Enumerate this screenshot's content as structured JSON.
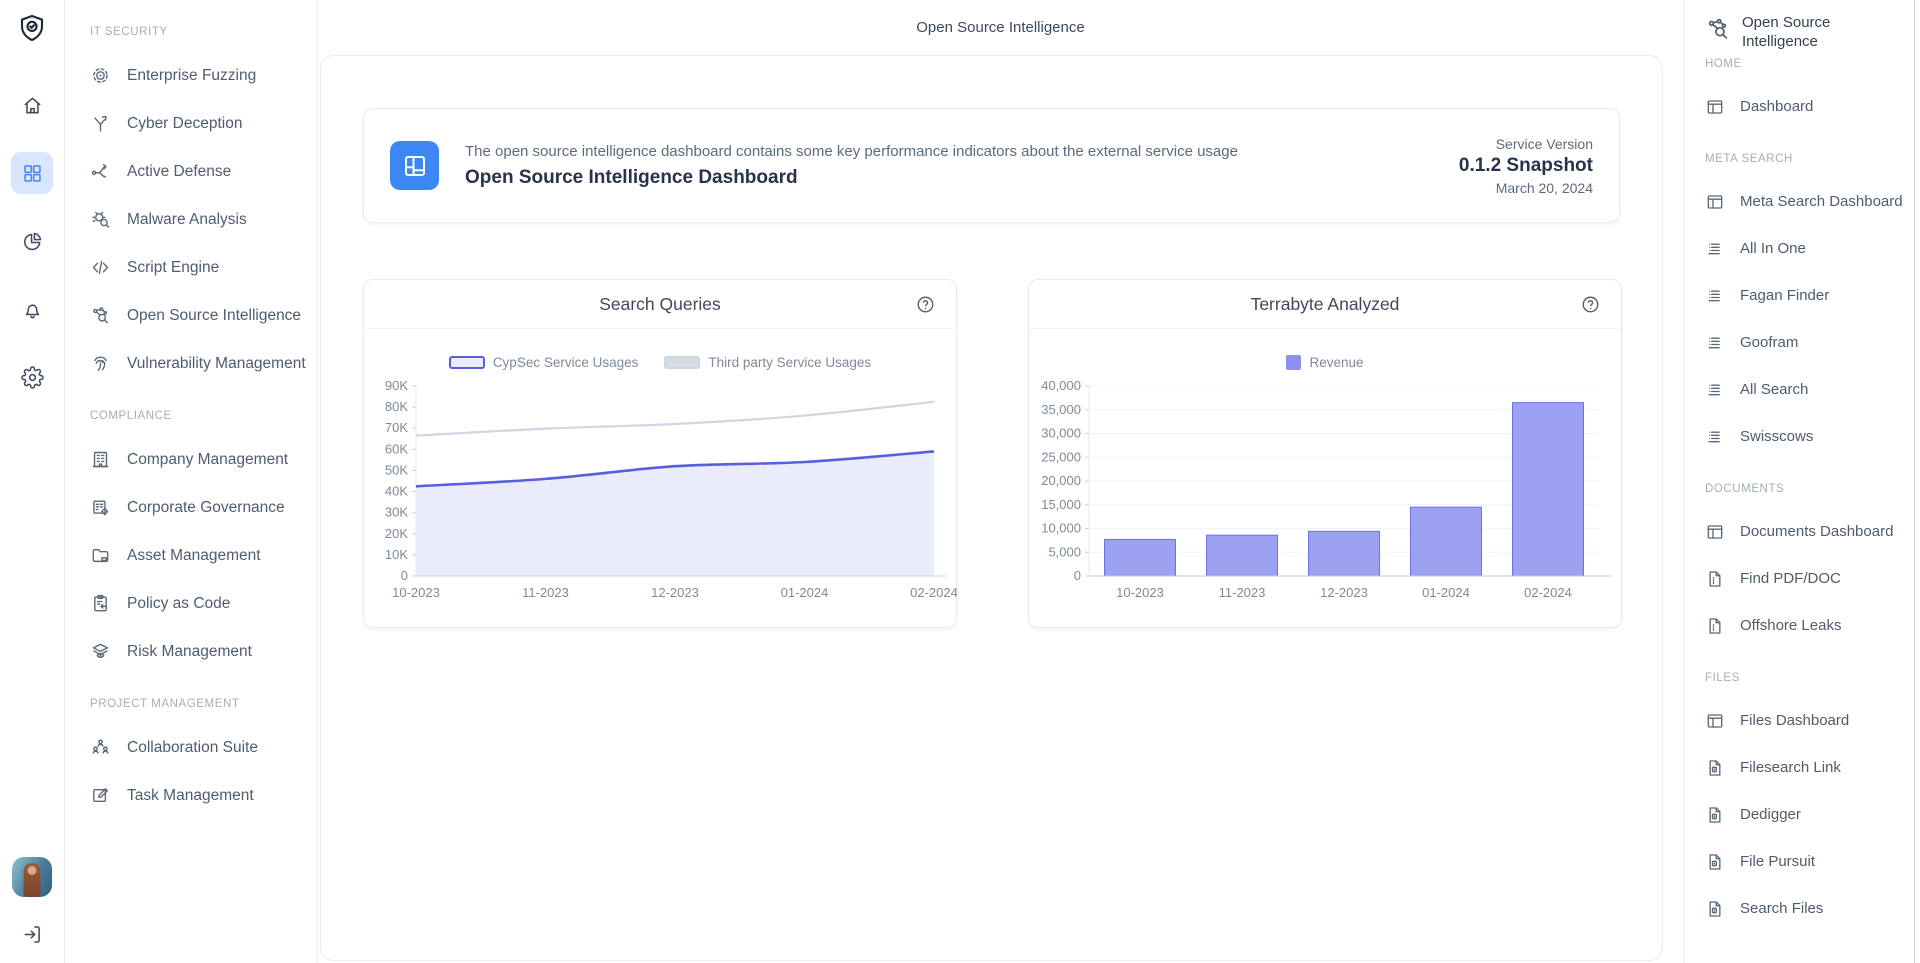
{
  "header": {
    "title": "Open Source Intelligence"
  },
  "rail": {
    "logo": "shield-check",
    "items": [
      {
        "name": "home",
        "icon": "home",
        "active": false
      },
      {
        "name": "apps-grid",
        "icon": "grid",
        "active": true
      },
      {
        "name": "analytics-pie",
        "icon": "pie",
        "active": false
      },
      {
        "name": "notifications-bell",
        "icon": "bell",
        "active": false
      },
      {
        "name": "settings-gear",
        "icon": "gear",
        "active": false
      }
    ],
    "active_color": "#4286f5",
    "active_bg": "#d8e7fd"
  },
  "sidebar": {
    "sections": [
      {
        "label": "IT SECURITY",
        "items": [
          {
            "label": "Enterprise Fuzzing",
            "icon": "target"
          },
          {
            "label": "Cyber Deception",
            "icon": "branch"
          },
          {
            "label": "Active Defense",
            "icon": "flow"
          },
          {
            "label": "Malware Analysis",
            "icon": "bug-search"
          },
          {
            "label": "Script Engine",
            "icon": "code"
          },
          {
            "label": "Open Source Intelligence",
            "icon": "network-search"
          },
          {
            "label": "Vulnerability Management",
            "icon": "fingerprint"
          }
        ]
      },
      {
        "label": "COMPLIANCE",
        "items": [
          {
            "label": "Company Management",
            "icon": "building"
          },
          {
            "label": "Corporate Governance",
            "icon": "doc-gear"
          },
          {
            "label": "Asset Management",
            "icon": "folder"
          },
          {
            "label": "Policy as Code",
            "icon": "clipboard"
          },
          {
            "label": "Risk Management",
            "icon": "layers-eye"
          }
        ]
      },
      {
        "label": "PROJECT MANAGEMENT",
        "items": [
          {
            "label": "Collaboration Suite",
            "icon": "people"
          },
          {
            "label": "Task Management",
            "icon": "edit-square"
          }
        ]
      }
    ]
  },
  "info_card": {
    "description": "The open source intelligence dashboard contains some key performance indicators about the external service usage",
    "title": "Open Source Intelligence Dashboard",
    "version_label": "Service Version",
    "version_value": "0.1.2 Snapshot",
    "version_date": "March 20, 2024",
    "icon": "layout",
    "icon_bg": "#3d87f5"
  },
  "chart_data": [
    {
      "type": "area",
      "title": "Search Queries",
      "categories": [
        "10-2023",
        "11-2023",
        "12-2023",
        "01-2024",
        "02-2024"
      ],
      "series": [
        {
          "name": "CypSec Service Usages",
          "values": [
            42500,
            46000,
            52000,
            54000,
            59000
          ],
          "color": "#585fdf",
          "fill": "#ebecfa",
          "swatch_bg": "#e9ebfb"
        },
        {
          "name": "Third party Service Usages",
          "values": [
            66500,
            69800,
            72000,
            76000,
            82500
          ],
          "color": "#cdd7e1",
          "fill": "none",
          "swatch_bg": "#d5dce3"
        }
      ],
      "ylim": [
        0,
        90000
      ],
      "ytick_labels": [
        "0",
        "10K",
        "20K",
        "30K",
        "40K",
        "50K",
        "60K",
        "70K",
        "80K",
        "90K"
      ],
      "legend_position": "top",
      "grid": false
    },
    {
      "type": "bar",
      "title": "Terrabyte Analyzed",
      "categories": [
        "10-2023",
        "11-2023",
        "12-2023",
        "01-2024",
        "02-2024"
      ],
      "series": [
        {
          "name": "Revenue",
          "values": [
            7700,
            8600,
            9400,
            14500,
            36500
          ],
          "color": "#9da1f2",
          "border": "#6c72e4",
          "legend_swatch": "#8d92ef"
        }
      ],
      "ylim": [
        0,
        40000
      ],
      "ytick_labels": [
        "0",
        "5,000",
        "10,000",
        "15,000",
        "20,000",
        "25,000",
        "30,000",
        "35,000",
        "40,000"
      ],
      "legend_position": "top",
      "grid": true
    }
  ],
  "right_sidebar": {
    "title": "Open Source Intelligence",
    "icon": "network-search",
    "sections": [
      {
        "label": "HOME",
        "items": [
          {
            "label": "Dashboard",
            "icon": "dashboard"
          }
        ]
      },
      {
        "label": "META SEARCH",
        "items": [
          {
            "label": "Meta Search Dashboard",
            "icon": "dashboard"
          },
          {
            "label": "All In One",
            "icon": "list"
          },
          {
            "label": "Fagan Finder",
            "icon": "list"
          },
          {
            "label": "Goofram",
            "icon": "list"
          },
          {
            "label": "All Search",
            "icon": "list"
          },
          {
            "label": "Swisscows",
            "icon": "list"
          }
        ]
      },
      {
        "label": "DOCUMENTS",
        "items": [
          {
            "label": "Documents Dashboard",
            "icon": "dashboard"
          },
          {
            "label": "Find PDF/DOC",
            "icon": "doc"
          },
          {
            "label": "Offshore Leaks",
            "icon": "doc"
          }
        ]
      },
      {
        "label": "FILES",
        "items": [
          {
            "label": "Files Dashboard",
            "icon": "dashboard"
          },
          {
            "label": "Filesearch Link",
            "icon": "doc-search"
          },
          {
            "label": "Dedigger",
            "icon": "doc-search"
          },
          {
            "label": "File Pursuit",
            "icon": "doc-search"
          },
          {
            "label": "Search Files",
            "icon": "doc-search"
          }
        ]
      }
    ]
  }
}
